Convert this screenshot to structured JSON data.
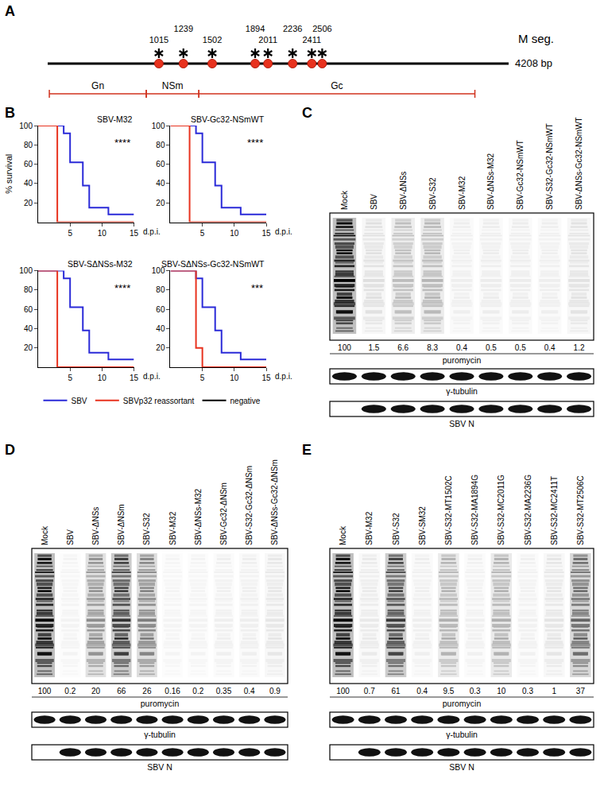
{
  "diagram": {
    "label": "A",
    "segment": "M seg.",
    "length": 4208,
    "length_label": "4208 bp",
    "mutations": [
      1015,
      1239,
      1502,
      1894,
      2011,
      2236,
      2411,
      2506
    ],
    "regions": [
      {
        "name": "Gn",
        "start": 15,
        "end": 900
      },
      {
        "name": "NSm",
        "start": 900,
        "end": 1380
      },
      {
        "name": "Gc",
        "start": 1380,
        "end": 3900
      }
    ]
  },
  "survival_label": "B",
  "chart_data": [
    {
      "type": "line",
      "title": "SBV-M32",
      "annotations": [
        "****"
      ],
      "x": [
        0,
        3,
        4,
        5,
        7,
        8,
        11,
        15
      ],
      "series": [
        {
          "name": "SBV",
          "color": "#2a2ad8",
          "values": [
            100,
            100,
            92,
            62,
            38,
            15,
            8,
            8
          ]
        },
        {
          "name": "SBVp32 reassortant",
          "color": "#e8321e",
          "values": [
            100,
            0,
            0,
            0,
            0,
            0,
            0,
            0
          ]
        },
        {
          "name": "negative",
          "color": "#000000",
          "values": [
            null,
            null,
            null,
            null,
            null,
            null,
            null,
            null
          ]
        }
      ],
      "xlim": [
        0,
        15
      ],
      "ylim": [
        0,
        100
      ],
      "xticks": [
        5,
        10,
        15
      ],
      "yticks": [
        20,
        40,
        60,
        80,
        100
      ],
      "xlabel": "d.p.i.",
      "ylabel": "% survival",
      "line_style": "step",
      "grid": false,
      "legend": "bottom"
    },
    {
      "type": "line",
      "title": "SBV-Gc32-NSmWT",
      "annotations": [
        "****"
      ],
      "x": [
        0,
        3,
        4,
        5,
        7,
        8,
        11,
        15
      ],
      "series": [
        {
          "name": "SBV",
          "color": "#2a2ad8",
          "values": [
            100,
            100,
            92,
            62,
            38,
            15,
            8,
            8
          ]
        },
        {
          "name": "SBVp32 reassortant",
          "color": "#e8321e",
          "values": [
            100,
            0,
            0,
            0,
            0,
            0,
            0,
            0
          ]
        },
        {
          "name": "negative",
          "color": "#000000",
          "values": [
            null,
            null,
            null,
            null,
            null,
            null,
            null,
            null
          ]
        }
      ],
      "xlim": [
        0,
        15
      ],
      "ylim": [
        0,
        100
      ],
      "xticks": [
        5,
        10,
        15
      ],
      "yticks": [
        20,
        40,
        60,
        80,
        100
      ],
      "xlabel": "d.p.i.",
      "line_style": "step",
      "grid": false
    },
    {
      "type": "line",
      "title": "SBV-SΔNSs-M32",
      "annotations": [
        "****"
      ],
      "x": [
        0,
        3,
        4,
        5,
        7,
        8,
        11,
        15
      ],
      "series": [
        {
          "name": "SBV",
          "color": "#2a2ad8",
          "values": [
            100,
            100,
            92,
            62,
            38,
            15,
            8,
            8
          ]
        },
        {
          "name": "SBVp32 reassortant",
          "color": "#e8321e",
          "values": [
            100,
            0,
            0,
            0,
            0,
            0,
            0,
            0
          ]
        },
        {
          "name": "negative",
          "color": "#000000",
          "values": [
            null,
            null,
            null,
            null,
            null,
            null,
            null,
            null
          ]
        }
      ],
      "xlim": [
        0,
        15
      ],
      "ylim": [
        0,
        100
      ],
      "xticks": [
        5,
        10,
        15
      ],
      "yticks": [
        20,
        40,
        60,
        80,
        100
      ],
      "xlabel": "d.p.i.",
      "line_style": "step",
      "grid": false
    },
    {
      "type": "line",
      "title": "SBV-SΔNSs-Gc32-NSmWT",
      "annotations": [
        "***"
      ],
      "x": [
        0,
        3,
        4,
        5,
        7,
        8,
        11,
        15
      ],
      "series": [
        {
          "name": "SBV",
          "color": "#2a2ad8",
          "values": [
            100,
            100,
            92,
            62,
            38,
            15,
            8,
            8
          ]
        },
        {
          "name": "SBVp32 reassortant",
          "color": "#e8321e",
          "values": [
            100,
            100,
            20,
            0,
            0,
            0,
            0,
            0
          ]
        },
        {
          "name": "negative",
          "color": "#000000",
          "values": [
            null,
            null,
            null,
            null,
            null,
            null,
            null,
            null
          ]
        }
      ],
      "xlim": [
        0,
        15
      ],
      "ylim": [
        0,
        100
      ],
      "xticks": [
        5,
        10,
        15
      ],
      "yticks": [
        20,
        40,
        60,
        80,
        100
      ],
      "xlabel": "d.p.i.",
      "line_style": "step",
      "grid": false
    }
  ],
  "blots": [
    {
      "label": "C",
      "lanes": [
        "Mock",
        "SBV",
        "SBV-ΔNSs",
        "SBV-S32",
        "SBV-M32",
        "SBV-ΔNSs-M32",
        "SBV-Gc32-NSmWT",
        "SBV-S32-Gc32-NSmWT",
        "SBV-ΔNSs-Gc32-NSmWT"
      ],
      "quantification": {
        "label": "puromycin",
        "values": [
          100,
          1.5,
          6.6,
          8.3,
          0.4,
          0.5,
          0.5,
          0.4,
          1.2
        ]
      },
      "strips": [
        {
          "label": "γ-tubulin",
          "detected": [
            true,
            true,
            true,
            true,
            true,
            true,
            true,
            true,
            true
          ]
        },
        {
          "label": "SBV N",
          "detected": [
            false,
            true,
            true,
            true,
            true,
            true,
            true,
            true,
            true
          ]
        }
      ]
    },
    {
      "label": "D",
      "lanes": [
        "Mock",
        "SBV",
        "SBV-ΔNSs",
        "SBV-ΔNSm",
        "SBV-S32",
        "SBV-M32",
        "SBV-ΔNSs-M32",
        "SBV-Gc32-ΔNSm",
        "SBV-S32-Gc32-ΔNSm",
        "SBV-ΔNSs-Gc32-ΔNSm"
      ],
      "quantification": {
        "label": "puromycin",
        "values": [
          100,
          0.2,
          20,
          66,
          26,
          0.16,
          0.2,
          0.35,
          0.4,
          0.9
        ]
      },
      "strips": [
        {
          "label": "γ-tubulin",
          "detected": [
            true,
            true,
            true,
            true,
            true,
            true,
            true,
            true,
            true,
            true
          ]
        },
        {
          "label": "SBV N",
          "detected": [
            false,
            true,
            true,
            true,
            true,
            true,
            true,
            true,
            true,
            true
          ]
        }
      ]
    },
    {
      "label": "E",
      "lanes": [
        "Mock",
        "SBV-M32",
        "SBV-S32",
        "SBV-SM32",
        "SBV-S32-MT1502C",
        "SBV-S32-MA1894G",
        "SBV-S32-MC2011G",
        "SBV-S32-MA2236G",
        "SBV-S32-MC2411T",
        "SBV-S32-MT2506C"
      ],
      "quantification": {
        "label": "puromycin",
        "values": [
          100,
          0.7,
          61,
          0.4,
          9.5,
          0.3,
          10,
          0.3,
          1,
          37
        ]
      },
      "strips": [
        {
          "label": "γ-tubulin",
          "detected": [
            true,
            true,
            true,
            true,
            true,
            true,
            true,
            true,
            true,
            true
          ]
        },
        {
          "label": "SBV N",
          "detected": [
            false,
            true,
            true,
            true,
            true,
            true,
            true,
            true,
            true,
            true
          ]
        }
      ]
    }
  ]
}
